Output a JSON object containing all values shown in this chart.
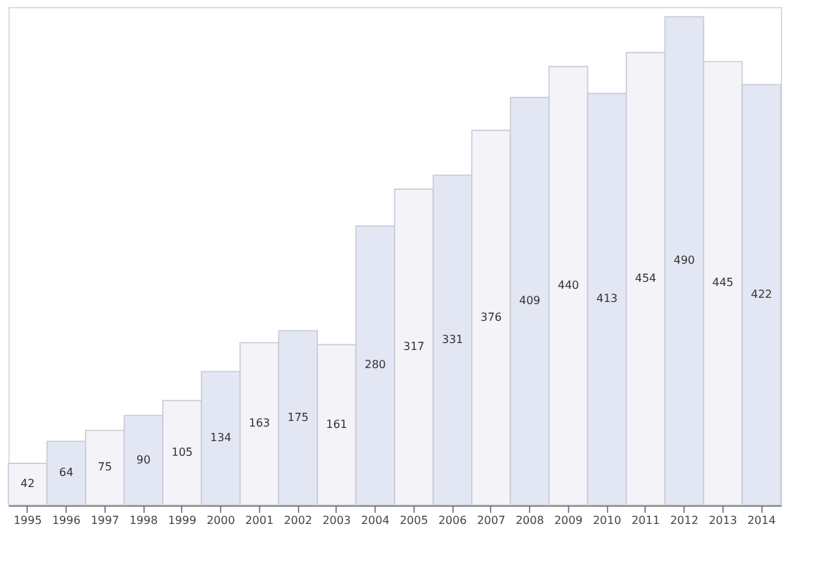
{
  "chart_data": {
    "type": "bar",
    "categories": [
      "1995",
      "1996",
      "1997",
      "1998",
      "1999",
      "2000",
      "2001",
      "2002",
      "2003",
      "2004",
      "2005",
      "2006",
      "2007",
      "2008",
      "2009",
      "2010",
      "2011",
      "2012",
      "2013",
      "2014"
    ],
    "values": [
      42,
      64,
      75,
      90,
      105,
      134,
      163,
      175,
      161,
      280,
      317,
      331,
      376,
      409,
      440,
      413,
      454,
      490,
      445,
      422
    ],
    "colors": [
      "#f3f3f8",
      "#e3e7f3",
      "#f3f3f8",
      "#e3e7f3",
      "#f3f3f8",
      "#e3e7f3",
      "#f3f3f8",
      "#e3e7f3",
      "#f3f3f8",
      "#e3e7f3",
      "#f3f3f8",
      "#e3e7f3",
      "#f3f3f8",
      "#e3e7f3",
      "#f3f3f8",
      "#e3e7f3",
      "#f3f3f8",
      "#e3e7f3",
      "#f3f3f8",
      "#e3e7f3"
    ],
    "data_labels": true,
    "grid": false,
    "legend": false
  }
}
